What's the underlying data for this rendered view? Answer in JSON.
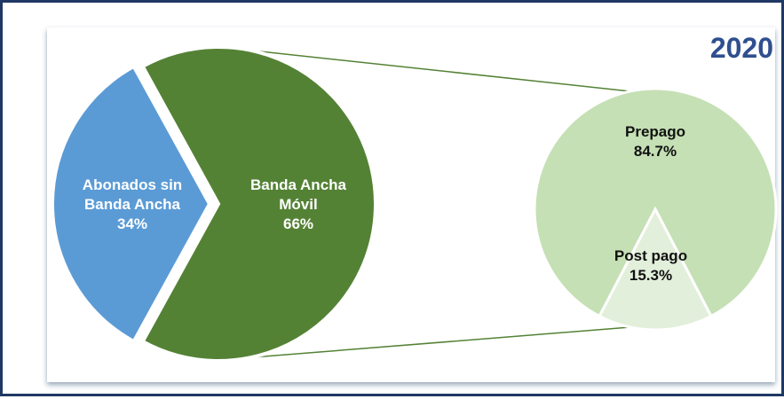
{
  "chart_data": [
    {
      "type": "pie",
      "title": "2020",
      "slices": [
        {
          "name": "Abonados sin Banda Ancha",
          "lines": [
            "Abonados sin",
            "Banda Ancha"
          ],
          "value": 34,
          "value_label": "34%",
          "color": "#5b9bd5"
        },
        {
          "name": "Banda Ancha Móvil",
          "lines": [
            "Banda Ancha",
            "Móvil"
          ],
          "value": 66,
          "value_label": "66%",
          "color": "#548235"
        }
      ]
    },
    {
      "type": "pie",
      "slices": [
        {
          "name": "Prepago",
          "lines": [
            "Prepago"
          ],
          "value": 84.7,
          "value_label": "84.7%",
          "color": "#c5e0b4"
        },
        {
          "name": "Post pago",
          "lines": [
            "Post pago"
          ],
          "value": 15.3,
          "value_label": "15.3%",
          "color": "#e2efda"
        }
      ]
    }
  ],
  "colors": {
    "frame_border": "#1f3864",
    "connector": "#548235",
    "title": "#2f4f8f"
  }
}
